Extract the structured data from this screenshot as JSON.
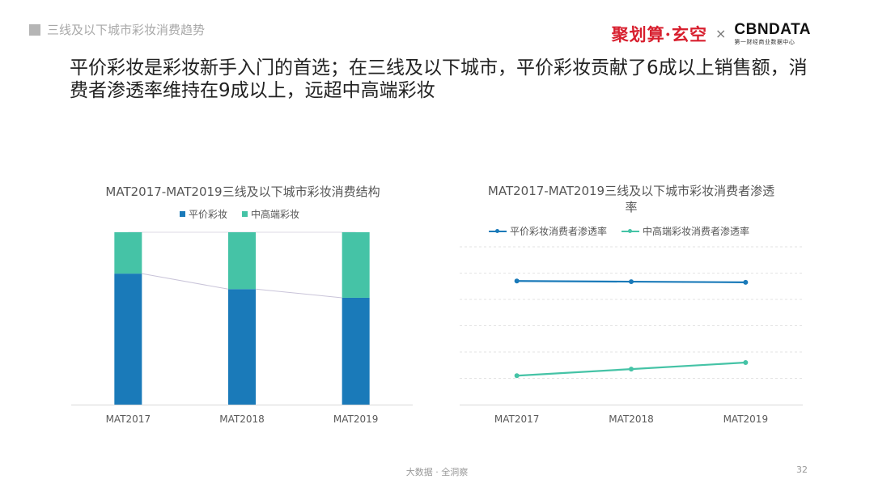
{
  "header": {
    "section_title": "三线及以下城市彩妆消费趋势",
    "logo_left": "聚划算·玄空",
    "logo_sep": "×",
    "logo_right_main": "CBNDATA",
    "logo_right_sub": "第一财经商业数据中心"
  },
  "headline": "平价彩妆是彩妆新手入门的首选；在三线及以下城市，平价彩妆贡献了6成以上销售额，消费者渗透率维持在9成以上，远超中高端彩妆",
  "colors": {
    "blue": "#1a7ab9",
    "teal": "#45c3a6",
    "connector": "#c9c4d9"
  },
  "chart_data": [
    {
      "type": "bar",
      "stacked": true,
      "percent": true,
      "title": "MAT2017-MAT2019三线及以下城市彩妆消费结构",
      "categories": [
        "MAT2017",
        "MAT2018",
        "MAT2019"
      ],
      "series": [
        {
          "name": "平价彩妆",
          "values": [
            76,
            67,
            62
          ],
          "color": "#1a7ab9"
        },
        {
          "name": "中高端彩妆",
          "values": [
            24,
            33,
            38
          ],
          "color": "#45c3a6"
        }
      ],
      "ylim": [
        0,
        100
      ],
      "series_lines": true,
      "legend": "top"
    },
    {
      "type": "line",
      "title": "MAT2017-MAT2019三线及以下城市彩妆消费者渗透率",
      "categories": [
        "MAT2017",
        "MAT2018",
        "MAT2019"
      ],
      "series": [
        {
          "name": "平价彩妆消费者渗透率",
          "values": [
            94,
            93.5,
            93
          ],
          "color": "#1a7ab9"
        },
        {
          "name": "中高端彩妆消费者渗透率",
          "values": [
            22,
            27,
            32
          ],
          "color": "#45c3a6"
        }
      ],
      "ylim": [
        0,
        120
      ],
      "grid": true,
      "legend": "top"
    }
  ],
  "footer": {
    "tagline": "大数据 · 全洞察",
    "page": "32"
  }
}
